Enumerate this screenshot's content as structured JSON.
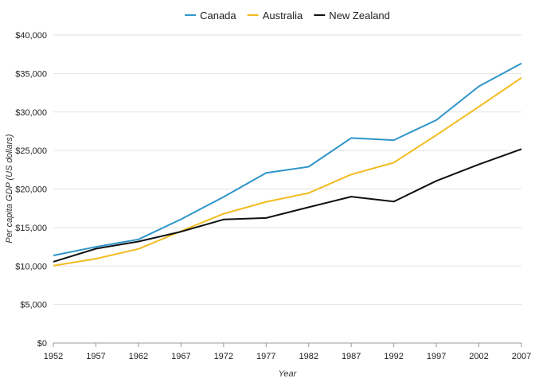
{
  "chart_data": {
    "type": "line",
    "title": "",
    "xlabel": "Year",
    "ylabel": "Per capita GDP (US dollars)",
    "legend_position": "top-center",
    "grid": true,
    "x": [
      1952,
      1957,
      1962,
      1967,
      1972,
      1977,
      1982,
      1987,
      1992,
      1997,
      2002,
      2007
    ],
    "xlim": [
      1952,
      2007
    ],
    "ylim": [
      0,
      40000
    ],
    "ytick_values": [
      0,
      5000,
      10000,
      15000,
      20000,
      25000,
      30000,
      35000,
      40000
    ],
    "ytick_labels": [
      "$0",
      "$5,000",
      "$10,000",
      "$15,000",
      "$20,000",
      "$25,000",
      "$30,000",
      "$35,000",
      "$40,000"
    ],
    "xtick_labels": [
      "1952",
      "1957",
      "1962",
      "1967",
      "1972",
      "1977",
      "1982",
      "1987",
      "1992",
      "1997",
      "2002",
      "2007"
    ],
    "series": [
      {
        "name": "Canada",
        "color": "#2e95c9",
        "values": [
          11367,
          12490,
          13462,
          16077,
          18971,
          22091,
          22899,
          26627,
          26343,
          28955,
          33329,
          36319
        ]
      },
      {
        "name": "Australia",
        "color": "#f2bb1f",
        "values": [
          10040,
          10950,
          12217,
          14526,
          16789,
          18334,
          19477,
          21889,
          23425,
          26998,
          30688,
          34435
        ]
      },
      {
        "name": "New Zealand",
        "color": "#111111",
        "values": [
          10557,
          12247,
          13176,
          14464,
          16046,
          16234,
          17632,
          19007,
          18363,
          21050,
          23190,
          25185
        ]
      }
    ]
  }
}
